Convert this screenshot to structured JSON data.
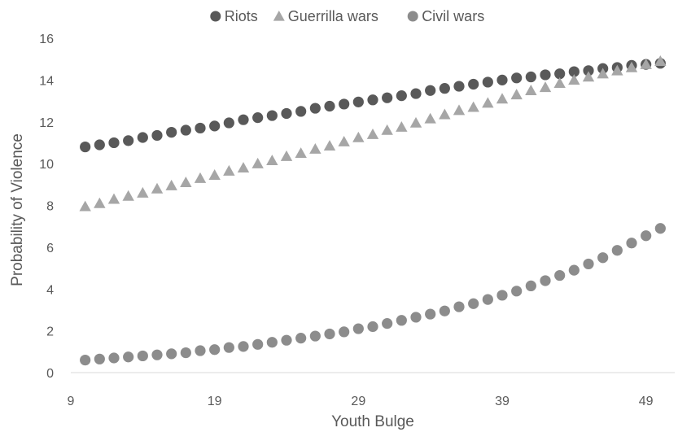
{
  "chart_data": {
    "type": "scatter",
    "title": "",
    "xlabel": "Youth Bulge",
    "ylabel": "Probability of Violence",
    "xlim": [
      9,
      51
    ],
    "ylim": [
      0,
      16
    ],
    "xticks": [
      "9",
      "19",
      "29",
      "39",
      "49"
    ],
    "yticks": [
      "0",
      "2",
      "4",
      "6",
      "8",
      "10",
      "12",
      "14",
      "16"
    ],
    "grid": false,
    "legend_position": "top",
    "x": [
      10,
      11,
      12,
      13,
      14,
      15,
      16,
      17,
      18,
      19,
      20,
      21,
      22,
      23,
      24,
      25,
      26,
      27,
      28,
      29,
      30,
      31,
      32,
      33,
      34,
      35,
      36,
      37,
      38,
      39,
      40,
      41,
      42,
      43,
      44,
      45,
      46,
      47,
      48,
      49,
      50
    ],
    "series": [
      {
        "name": "Riots",
        "marker": "circle",
        "color": "#595959",
        "values": [
          10.8,
          10.9,
          11.0,
          11.1,
          11.25,
          11.35,
          11.5,
          11.6,
          11.7,
          11.8,
          11.95,
          12.1,
          12.2,
          12.3,
          12.4,
          12.5,
          12.65,
          12.75,
          12.85,
          12.95,
          13.05,
          13.15,
          13.25,
          13.35,
          13.5,
          13.6,
          13.7,
          13.8,
          13.9,
          14.0,
          14.1,
          14.15,
          14.25,
          14.3,
          14.4,
          14.45,
          14.55,
          14.6,
          14.7,
          14.75,
          14.8
        ]
      },
      {
        "name": "Guerrilla wars",
        "marker": "triangle",
        "color": "#a6a6a6",
        "values": [
          7.95,
          8.1,
          8.3,
          8.45,
          8.6,
          8.8,
          8.95,
          9.1,
          9.3,
          9.45,
          9.65,
          9.8,
          10.0,
          10.15,
          10.35,
          10.5,
          10.7,
          10.85,
          11.05,
          11.25,
          11.4,
          11.6,
          11.75,
          11.95,
          12.15,
          12.35,
          12.55,
          12.7,
          12.9,
          13.1,
          13.3,
          13.5,
          13.65,
          13.85,
          14.0,
          14.15,
          14.3,
          14.45,
          14.6,
          14.75,
          14.9
        ]
      },
      {
        "name": "Civil wars",
        "marker": "circle",
        "color": "#8c8c8c",
        "values": [
          0.6,
          0.65,
          0.7,
          0.75,
          0.8,
          0.85,
          0.9,
          0.95,
          1.05,
          1.1,
          1.2,
          1.25,
          1.35,
          1.45,
          1.55,
          1.65,
          1.75,
          1.85,
          1.95,
          2.1,
          2.2,
          2.35,
          2.5,
          2.65,
          2.8,
          2.95,
          3.15,
          3.3,
          3.5,
          3.7,
          3.9,
          4.15,
          4.4,
          4.65,
          4.9,
          5.2,
          5.5,
          5.85,
          6.2,
          6.55,
          6.9
        ]
      }
    ]
  }
}
